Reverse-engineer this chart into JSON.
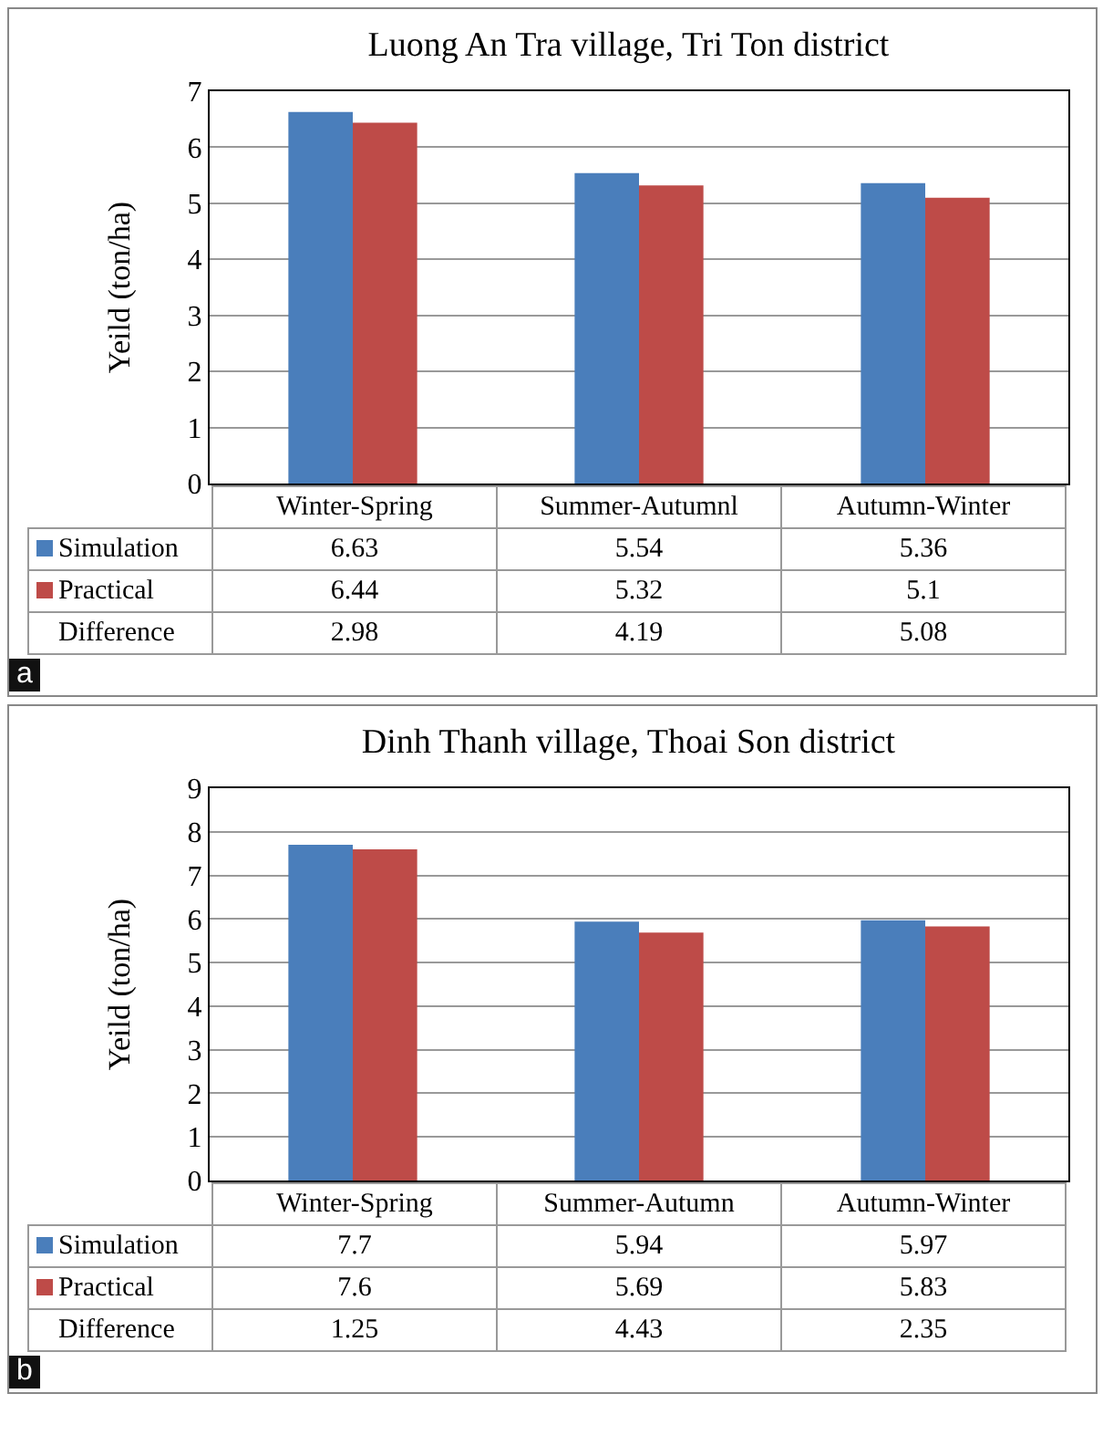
{
  "chart_data": [
    {
      "type": "bar",
      "title": "Luong An Tra village, Tri Ton district",
      "ylabel": "Yeild (ton/ha)",
      "categories": [
        "Winter-Spring",
        "Summer-Autumnl",
        "Autumn-Winter"
      ],
      "series": [
        {
          "name": "Simulation",
          "color": "#4a7ebb",
          "values": [
            6.63,
            5.54,
            5.36
          ]
        },
        {
          "name": "Practical",
          "color": "#be4b48",
          "values": [
            6.44,
            5.32,
            5.1
          ]
        }
      ],
      "ylim": [
        0,
        7
      ],
      "yticks": [
        0,
        1,
        2,
        3,
        4,
        5,
        6,
        7
      ],
      "grid": "y",
      "legend": "bottom",
      "tick_labels": "y",
      "data_labels": true,
      "annotations": [
        "Difference",
        "2.98",
        "4.19",
        "5.08",
        "a"
      ]
    },
    {
      "type": "bar",
      "title": "Dinh Thanh village, Thoai Son district",
      "ylabel": "Yeild (ton/ha)",
      "categories": [
        "Winter-Spring",
        "Summer-Autumn",
        "Autumn-Winter"
      ],
      "series": [
        {
          "name": "Simulation",
          "color": "#4a7ebb",
          "values": [
            7.7,
            5.94,
            5.97
          ]
        },
        {
          "name": "Practical",
          "color": "#be4b48",
          "values": [
            7.6,
            5.69,
            5.83
          ]
        }
      ],
      "ylim": [
        0,
        9
      ],
      "yticks": [
        0,
        1,
        2,
        3,
        4,
        5,
        6,
        7,
        8,
        9
      ],
      "grid": "y",
      "legend": "bottom",
      "tick_labels": "y",
      "data_labels": true,
      "annotations": [
        "Difference",
        "1.25",
        "4.43",
        "2.35",
        "b"
      ]
    }
  ]
}
